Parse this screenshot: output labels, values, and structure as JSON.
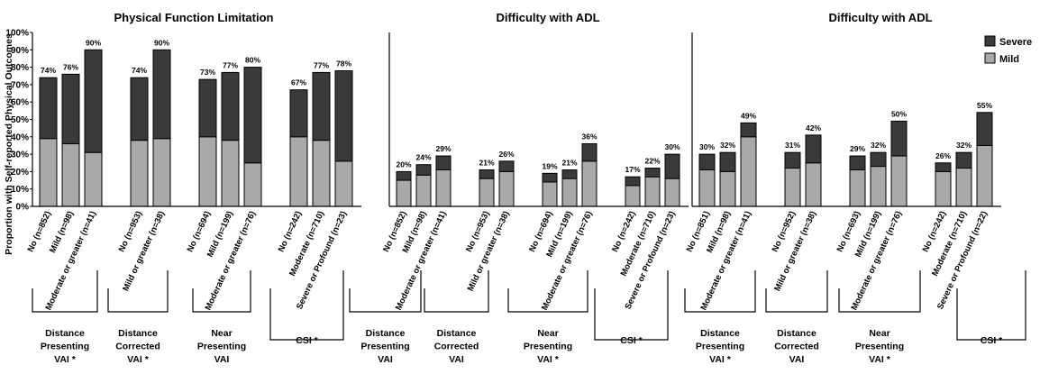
{
  "chart_data": [
    {
      "type": "bar",
      "stacked": true,
      "title": "Physical Function Limitation",
      "ylabel": "Proportion with Self-reported Physical Outcomes",
      "ylim": [
        0,
        100
      ],
      "yticks": [
        "0%",
        "10%",
        "20%",
        "30%",
        "40%",
        "50%",
        "60%",
        "70%",
        "80%",
        "90%",
        "100%"
      ],
      "groups": [
        {
          "label": [
            "Distance",
            "Presenting",
            "VAI *"
          ],
          "categories": [
            "No (n=852)",
            "Mild (n=98)",
            "Moderate or greater (n=41)"
          ],
          "mild": [
            39,
            36,
            31
          ],
          "severe": [
            35,
            40,
            59
          ],
          "totals": [
            "74%",
            "76%",
            "90%"
          ]
        },
        {
          "label": [
            "Distance",
            "Corrected",
            "VAI *"
          ],
          "categories": [
            "No (n=953)",
            "Mild or greater (n=38)"
          ],
          "mild": [
            38,
            39
          ],
          "severe": [
            36,
            51
          ],
          "totals": [
            "74%",
            "90%"
          ]
        },
        {
          "label": [
            "Near",
            "Presenting",
            "VAI"
          ],
          "categories": [
            "No (n=694)",
            "Mild (n=199)",
            "Moderate or greater (n=76)"
          ],
          "mild": [
            40,
            38,
            25
          ],
          "severe": [
            33,
            39,
            55
          ],
          "totals": [
            "73%",
            "77%",
            "80%"
          ]
        },
        {
          "label": [
            "CSI *"
          ],
          "categories": [
            "No (n=242)",
            "Moderate (n=710)",
            "Severe or Profound (n=23)"
          ],
          "mild": [
            40,
            38,
            26
          ],
          "severe": [
            27,
            39,
            52
          ],
          "totals": [
            "67%",
            "77%",
            "78%"
          ]
        }
      ]
    },
    {
      "type": "bar",
      "stacked": true,
      "title": "Difficulty with ADL",
      "ylim": [
        0,
        100
      ],
      "groups": [
        {
          "label": [
            "Distance",
            "Presenting",
            "VAI"
          ],
          "categories": [
            "No (n=852)",
            "Mild (n=98)",
            "Moderate or greater (n=41)"
          ],
          "mild": [
            15,
            18,
            21
          ],
          "severe": [
            5,
            6,
            8
          ],
          "totals": [
            "20%",
            "24%",
            "29%"
          ]
        },
        {
          "label": [
            "Distance",
            "Corrected",
            "VAI"
          ],
          "categories": [
            "No (n=953)",
            "Mild or greater (n=38)"
          ],
          "mild": [
            16,
            20
          ],
          "severe": [
            5,
            6
          ],
          "totals": [
            "21%",
            "26%"
          ]
        },
        {
          "label": [
            "Near",
            "Presenting",
            "VAI *"
          ],
          "categories": [
            "No (n=694)",
            "Mild (n=199)",
            "Moderate or greater (n=76)"
          ],
          "mild": [
            14,
            16,
            26
          ],
          "severe": [
            5,
            5,
            10
          ],
          "totals": [
            "19%",
            "21%",
            "36%"
          ]
        },
        {
          "label": [
            "CSI *"
          ],
          "categories": [
            "No (n=242)",
            "Moderate (n=710)",
            "Severe or Profound (n=23)"
          ],
          "mild": [
            12,
            17,
            16
          ],
          "severe": [
            5,
            5,
            14
          ],
          "totals": [
            "17%",
            "22%",
            "30%"
          ]
        }
      ]
    },
    {
      "type": "bar",
      "stacked": true,
      "title": "Difficulty with ADL",
      "ylim": [
        0,
        100
      ],
      "legend": {
        "position": "top-right",
        "entries": [
          "Severe",
          "Mild"
        ]
      },
      "groups": [
        {
          "label": [
            "Distance",
            "Presenting",
            "VAI *"
          ],
          "categories": [
            "No (n=851)",
            "Mild (n=98)",
            "Moderate or greater (n=41)"
          ],
          "mild": [
            21,
            20,
            40
          ],
          "severe": [
            9,
            11,
            8
          ],
          "totals": [
            "30%",
            "32%",
            "49%"
          ]
        },
        {
          "label": [
            "Distance",
            "Corrected",
            "VAI"
          ],
          "categories": [
            "No (n=952)",
            "Mild or greater (n=38)"
          ],
          "mild": [
            22,
            25
          ],
          "severe": [
            9,
            16
          ],
          "totals": [
            "31%",
            "42%"
          ]
        },
        {
          "label": [
            "Near",
            "Presenting",
            "VAI *"
          ],
          "categories": [
            "No (n=693)",
            "Mild (n=199)",
            "Moderate or greater (n=76)"
          ],
          "mild": [
            21,
            23,
            29
          ],
          "severe": [
            8,
            8,
            20
          ],
          "totals": [
            "29%",
            "32%",
            "50%"
          ]
        },
        {
          "label": [
            "CSI *"
          ],
          "categories": [
            "No (n=242)",
            "Moderate (n=710)",
            "Severe or Profound (n=22)"
          ],
          "mild": [
            20,
            22,
            35
          ],
          "severe": [
            5,
            9,
            19
          ],
          "totals": [
            "26%",
            "32%",
            "55%"
          ]
        }
      ]
    }
  ],
  "colors": {
    "mild": "#a9a9a9",
    "severe": "#3a3a3a",
    "outline": "#000000"
  }
}
